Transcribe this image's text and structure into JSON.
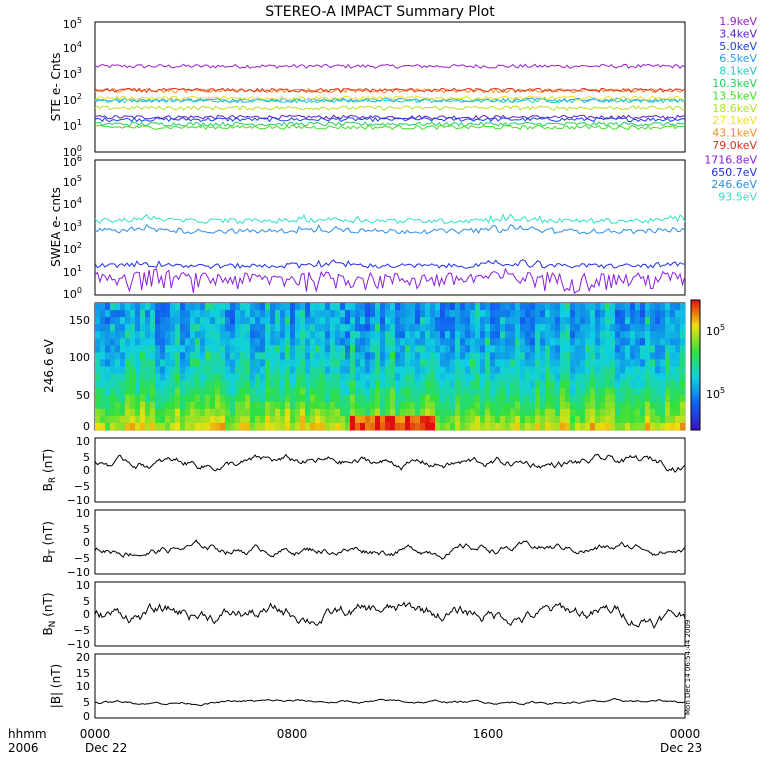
{
  "title": "STEREO-A IMPACT Summary Plot",
  "footer": {
    "hhmm_label": "hhmm",
    "year_label": "2006",
    "date_start": "Dec 22",
    "date_end": "Dec 23",
    "x_ticks": [
      "0000",
      "0800",
      "1600",
      "0000"
    ]
  },
  "side_stamp": "Mon Dec 14 06:54:44 2009",
  "chart_data": [
    {
      "type": "line",
      "panel": "ste",
      "ylabel": "STE e- Cnts",
      "yscale": "log",
      "ylim": [
        1,
        100000
      ],
      "y_ticks": [
        {
          "exp": "0"
        },
        {
          "exp": "1"
        },
        {
          "exp": "2"
        },
        {
          "exp": "3"
        },
        {
          "exp": "4"
        },
        {
          "exp": "5"
        }
      ],
      "series": [
        {
          "name": "1.9keV",
          "color": "#9a20c8",
          "level": 2000
        },
        {
          "name": "3.4keV",
          "color": "#5a20c8",
          "level": 22
        },
        {
          "name": "5.0keV",
          "color": "#2040e0",
          "level": 18
        },
        {
          "name": "6.5keV",
          "color": "#2aa0e8",
          "level": 100
        },
        {
          "name": "8.1keV",
          "color": "#20d0c0",
          "level": 95
        },
        {
          "name": "10.3keV",
          "color": "#20d060",
          "level": 12
        },
        {
          "name": "13.5keV",
          "color": "#40e020",
          "level": 9
        },
        {
          "name": "18.6keV",
          "color": "#b0e020",
          "level": 50
        },
        {
          "name": "27.1keV",
          "color": "#f0e020",
          "level": 120
        },
        {
          "name": "43.1keV",
          "color": "#f09020",
          "level": 230
        },
        {
          "name": "79.0keV",
          "color": "#e03020",
          "level": 240
        }
      ]
    },
    {
      "type": "line",
      "panel": "swea",
      "ylabel": "SWEA e- cnts",
      "yscale": "log",
      "ylim": [
        1,
        1000000
      ],
      "y_ticks": [
        {
          "exp": "0"
        },
        {
          "exp": "1"
        },
        {
          "exp": "2"
        },
        {
          "exp": "3"
        },
        {
          "exp": "4"
        },
        {
          "exp": "5"
        },
        {
          "exp": "6"
        }
      ],
      "series": [
        {
          "name": "1716.8eV",
          "color": "#8a20e0",
          "level": 3
        },
        {
          "name": "650.7eV",
          "color": "#2030e0",
          "level": 20
        },
        {
          "name": "246.6eV",
          "color": "#2a90e8",
          "level": 700
        },
        {
          "name": "93.5eV",
          "color": "#30e0c8",
          "level": 2000
        }
      ]
    },
    {
      "type": "heatmap",
      "panel": "pad",
      "ylabel": "246.6 eV",
      "ylim": [
        0,
        180
      ],
      "y_ticks": [
        "0",
        "50",
        "100",
        "150"
      ],
      "colorbar_ticks": [
        {
          "label": "10",
          "exp": "5"
        },
        {
          "label": "10",
          "exp": "5"
        }
      ]
    },
    {
      "type": "line",
      "panel": "br",
      "ylabel_main": "B",
      "ylabel_sub": "R",
      "ylabel_unit": " (nT)",
      "ylim": [
        -10,
        10
      ],
      "y_ticks": [
        "10",
        "5",
        "0",
        "−5",
        "−10"
      ]
    },
    {
      "type": "line",
      "panel": "bt",
      "ylabel_main": "B",
      "ylabel_sub": "T",
      "ylabel_unit": " (nT)",
      "ylim": [
        -10,
        10
      ],
      "y_ticks": [
        "10",
        "5",
        "0",
        "−5",
        "−10"
      ]
    },
    {
      "type": "line",
      "panel": "bn",
      "ylabel_main": "B",
      "ylabel_sub": "N",
      "ylabel_unit": " (nT)",
      "ylim": [
        -10,
        10
      ],
      "y_ticks": [
        "10",
        "5",
        "0",
        "−5",
        "−10"
      ]
    },
    {
      "type": "line",
      "panel": "bmag",
      "ylabel": "|B| (nT)",
      "ylim": [
        0,
        20
      ],
      "y_ticks": [
        "20",
        "15",
        "10",
        "5",
        "0"
      ]
    }
  ]
}
